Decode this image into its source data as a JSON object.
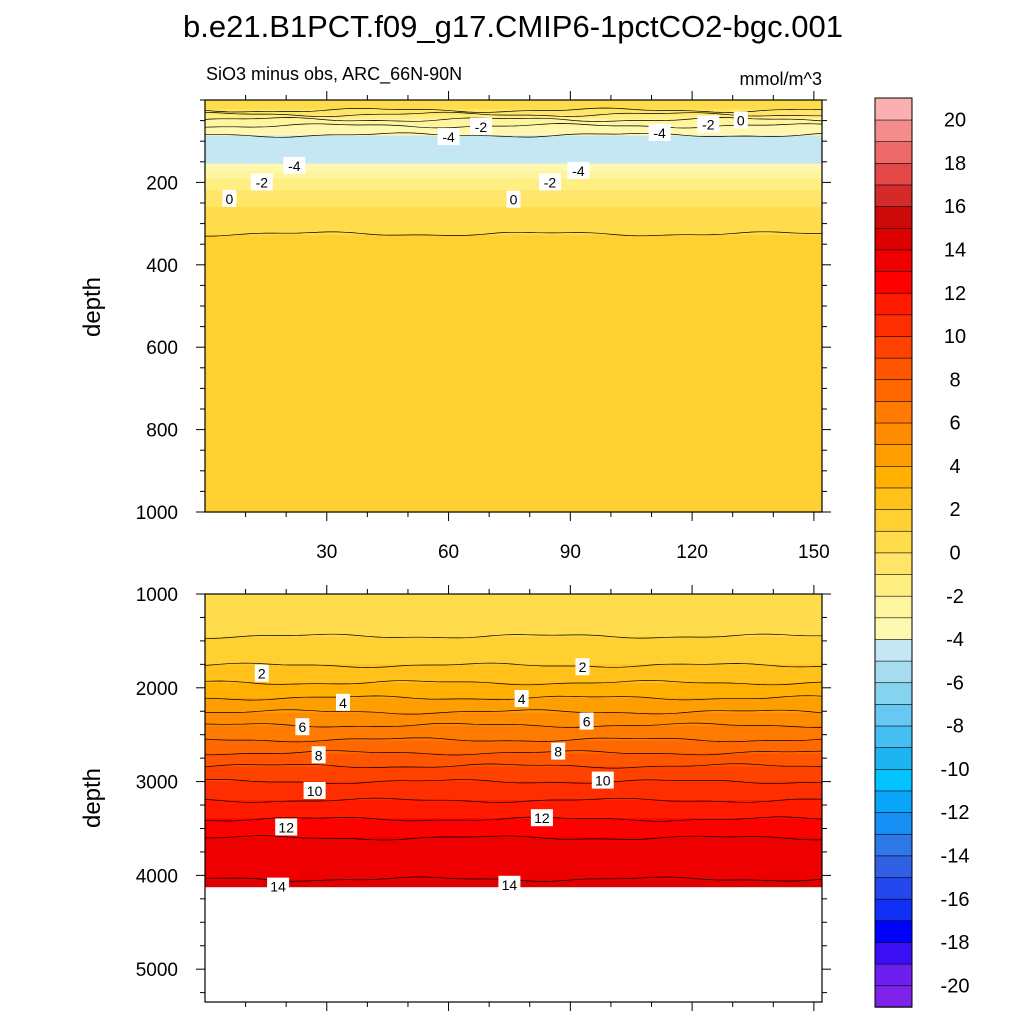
{
  "title": "b.e21.B1PCT.f09_g17.CMIP6-1pctCO2-bgc.001",
  "subtitle_left": "SiO3 minus obs, ARC_66N-90N",
  "subtitle_right": "mmol/m^3",
  "colorbar": {
    "levels": [
      -21,
      -20,
      -19,
      -18,
      -17,
      -16,
      -15,
      -14,
      -13,
      -12,
      -11,
      -10,
      -9,
      -8,
      -7,
      -6,
      -5,
      -4,
      -3,
      -2,
      -1,
      0,
      1,
      2,
      3,
      4,
      5,
      6,
      7,
      8,
      9,
      10,
      11,
      12,
      13,
      14,
      15,
      16,
      17,
      18,
      19,
      20,
      21
    ],
    "labels": [
      -20,
      -18,
      -16,
      -14,
      -12,
      -10,
      -8,
      -6,
      -4,
      -2,
      0,
      2,
      4,
      6,
      8,
      10,
      12,
      14,
      16,
      18,
      20
    ],
    "colors": [
      "#7e22ea",
      "#6d1ff0",
      "#3a0ff5",
      "#0000ff",
      "#1030f5",
      "#2548ee",
      "#3260e4",
      "#2f78e8",
      "#168ff5",
      "#0aa5fa",
      "#00c3ff",
      "#1eb4f2",
      "#45bff2",
      "#67c9f3",
      "#86d3f0",
      "#a6dcf0",
      "#c5e7f3",
      "#fff9b0",
      "#fff59e",
      "#ffef83",
      "#ffe668",
      "#ffdc4c",
      "#ffd031",
      "#ffc11a",
      "#ffb000",
      "#ff9e00",
      "#ff8c00",
      "#ff7a00",
      "#ff6800",
      "#ff5500",
      "#ff4200",
      "#ff2e00",
      "#ff1a00",
      "#ff0000",
      "#ee0000",
      "#dd0000",
      "#cc0a0a",
      "#d42a2a",
      "#e24848",
      "#ee6a6a",
      "#f58c8c",
      "#fbb0b0"
    ]
  },
  "chart_data": [
    {
      "type": "contour",
      "panel": "upper",
      "xlabel": "",
      "ylabel": "depth",
      "xlim": [
        0,
        152
      ],
      "ylim": [
        1000,
        0
      ],
      "xticks": [
        30,
        60,
        90,
        120,
        150
      ],
      "yticks": [
        200,
        400,
        600,
        800,
        1000
      ],
      "field_profile": [
        {
          "depth": 20,
          "value": 0.5
        },
        {
          "depth": 40,
          "value": -1.5
        },
        {
          "depth": 70,
          "value": -3.5
        },
        {
          "depth": 100,
          "value": -4.5
        },
        {
          "depth": 150,
          "value": -4.3
        },
        {
          "depth": 180,
          "value": -2.5
        },
        {
          "depth": 210,
          "value": -1.2
        },
        {
          "depth": 240,
          "value": -0.3
        },
        {
          "depth": 280,
          "value": 0.4
        },
        {
          "depth": 340,
          "value": 1.2
        },
        {
          "depth": 480,
          "value": 1.6
        },
        {
          "depth": 1000,
          "value": 1.4
        }
      ],
      "contour_labels": [
        {
          "text": "-2",
          "x": 68,
          "depth": 65
        },
        {
          "text": "-4",
          "x": 60,
          "depth": 90
        },
        {
          "text": "-4",
          "x": 112,
          "depth": 80
        },
        {
          "text": "-2",
          "x": 124,
          "depth": 60
        },
        {
          "text": "0",
          "x": 132,
          "depth": 50
        },
        {
          "text": "-4",
          "x": 22,
          "depth": 160
        },
        {
          "text": "-4",
          "x": 92,
          "depth": 172
        },
        {
          "text": "-2",
          "x": 14,
          "depth": 200
        },
        {
          "text": "-2",
          "x": 85,
          "depth": 200
        },
        {
          "text": "0",
          "x": 6,
          "depth": 240
        },
        {
          "text": "0",
          "x": 76,
          "depth": 242
        }
      ]
    },
    {
      "type": "contour",
      "panel": "lower",
      "xlabel": "",
      "ylabel": "depth",
      "xlim": [
        0,
        152
      ],
      "ylim": [
        5350,
        1000
      ],
      "xticks": [
        30,
        60,
        90,
        120,
        150
      ],
      "yticks": [
        1000,
        2000,
        3000,
        4000,
        5000
      ],
      "data_max_depth": 4120,
      "field_profile": [
        {
          "depth": 1100,
          "value": 0.6
        },
        {
          "depth": 1300,
          "value": 0.8
        },
        {
          "depth": 1600,
          "value": 1.2
        },
        {
          "depth": 1800,
          "value": 2.2
        },
        {
          "depth": 2000,
          "value": 3.3
        },
        {
          "depth": 2200,
          "value": 4.6
        },
        {
          "depth": 2400,
          "value": 6.0
        },
        {
          "depth": 2600,
          "value": 7.3
        },
        {
          "depth": 2800,
          "value": 8.8
        },
        {
          "depth": 3000,
          "value": 10.0
        },
        {
          "depth": 3200,
          "value": 11.0
        },
        {
          "depth": 3400,
          "value": 12.0
        },
        {
          "depth": 3600,
          "value": 13.0
        },
        {
          "depth": 3800,
          "value": 13.5
        },
        {
          "depth": 4000,
          "value": 13.9
        },
        {
          "depth": 4120,
          "value": 14.2
        }
      ],
      "contour_labels": [
        {
          "text": "2",
          "x": 14,
          "depth": 1850
        },
        {
          "text": "2",
          "x": 93,
          "depth": 1780
        },
        {
          "text": "4",
          "x": 34,
          "depth": 2160
        },
        {
          "text": "4",
          "x": 78,
          "depth": 2120
        },
        {
          "text": "6",
          "x": 24,
          "depth": 2420
        },
        {
          "text": "6",
          "x": 94,
          "depth": 2360
        },
        {
          "text": "8",
          "x": 28,
          "depth": 2720
        },
        {
          "text": "8",
          "x": 87,
          "depth": 2680
        },
        {
          "text": "10",
          "x": 27,
          "depth": 3100
        },
        {
          "text": "10",
          "x": 98,
          "depth": 2990
        },
        {
          "text": "12",
          "x": 20,
          "depth": 3490
        },
        {
          "text": "12",
          "x": 83,
          "depth": 3390
        },
        {
          "text": "14",
          "x": 18,
          "depth": 4120
        },
        {
          "text": "14",
          "x": 75,
          "depth": 4100
        }
      ]
    }
  ]
}
